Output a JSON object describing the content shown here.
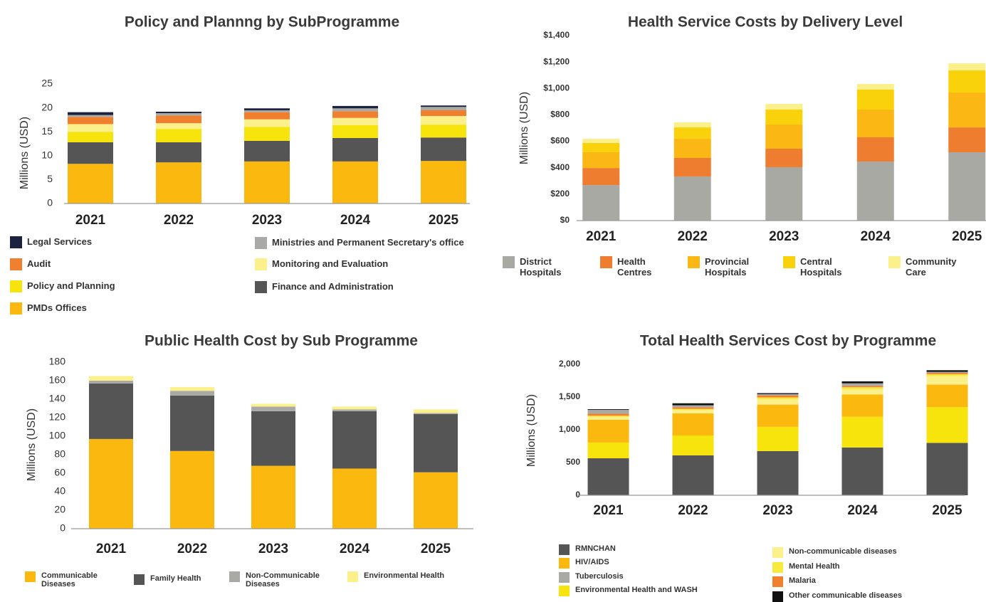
{
  "chart_data": [
    {
      "type": "stacked_bar",
      "title": "Policy and Plannng by SubProgramme",
      "y_label": "Millions (USD)",
      "categories": [
        "2021",
        "2022",
        "2023",
        "2024",
        "2025"
      ],
      "ylim": [
        0,
        25
      ],
      "yticks": [
        0,
        5,
        10,
        15,
        20,
        25
      ],
      "series": [
        {
          "name": "PMDs Offices",
          "color": "#fbb90f",
          "values": [
            8.3,
            8.6,
            8.8,
            8.8,
            8.9
          ]
        },
        {
          "name": "Finance and Administration",
          "color": "#555555",
          "values": [
            4.5,
            4.2,
            4.3,
            4.9,
            4.9
          ]
        },
        {
          "name": "Policy and Planning",
          "color": "#f7e40c",
          "values": [
            2.2,
            2.8,
            2.9,
            2.7,
            2.7
          ]
        },
        {
          "name": "Monitoring and Evaluation",
          "color": "#fbf08a",
          "values": [
            1.6,
            1.2,
            1.6,
            1.5,
            1.8
          ]
        },
        {
          "name": "Audit",
          "color": "#f07f2e",
          "values": [
            1.5,
            1.6,
            1.5,
            1.4,
            1.2
          ]
        },
        {
          "name": "Ministries and Permanent Secretary's office",
          "color": "#a9a9a6",
          "values": [
            0.4,
            0.5,
            0.4,
            0.6,
            0.7
          ]
        },
        {
          "name": "Legal Services",
          "color": "#1b2340",
          "values": [
            0.6,
            0.3,
            0.4,
            0.5,
            0.3
          ]
        }
      ]
    },
    {
      "type": "stacked_bar",
      "title": "Health Service Costs by Delivery Level",
      "y_label": "Millions (USD)",
      "categories": [
        "2021",
        "2022",
        "2023",
        "2024",
        "2025"
      ],
      "ylim": [
        0,
        1400
      ],
      "yticks": [
        {
          "value": 0,
          "label": "$0"
        },
        {
          "value": 200,
          "label": "$200"
        },
        {
          "value": 400,
          "label": "$400"
        },
        {
          "value": 600,
          "label": "$600"
        },
        {
          "value": 800,
          "label": "$800"
        },
        {
          "value": 1000,
          "label": "$1,000"
        },
        {
          "value": 1200,
          "label": "$1,200"
        },
        {
          "value": 1400,
          "label": "$1,400"
        }
      ],
      "series": [
        {
          "name": "District Hospitals",
          "color": "#a9a9a4",
          "values": [
            269,
            334,
            404,
            447,
            517
          ]
        },
        {
          "name": "Health Centres",
          "color": "#ef7d30",
          "values": [
            129,
            140,
            140,
            183,
            188
          ]
        },
        {
          "name": "Provincial Hospitals",
          "color": "#fbb714",
          "values": [
            119,
            145,
            183,
            210,
            264
          ]
        },
        {
          "name": "Central Hospitals",
          "color": "#fad20c",
          "values": [
            70,
            86,
            113,
            151,
            167
          ]
        },
        {
          "name": "Community Care",
          "color": "#fbf08a",
          "values": [
            32,
            38,
            43,
            43,
            54
          ]
        }
      ]
    },
    {
      "type": "stacked_bar",
      "title": "Public Health Cost by Sub Programme",
      "y_label": "Millions (USD)",
      "categories": [
        "2021",
        "2022",
        "2023",
        "2024",
        "2025"
      ],
      "ylim": [
        0,
        180
      ],
      "yticks": [
        0,
        20,
        40,
        60,
        80,
        100,
        120,
        140,
        160,
        180
      ],
      "series": [
        {
          "name": "Communicable Diseases",
          "color": "#fbb90f",
          "values": [
            97,
            84,
            68,
            65,
            61
          ]
        },
        {
          "name": "Family Health",
          "color": "#555555",
          "values": [
            60,
            60,
            59,
            62,
            63
          ]
        },
        {
          "name": "Non-Communicable Diseases",
          "color": "#a9a9a6",
          "values": [
            3,
            5,
            5,
            2,
            1
          ]
        },
        {
          "name": "Environmental Health",
          "color": "#fbf08a",
          "values": [
            5,
            4,
            3,
            3,
            4
          ]
        }
      ]
    },
    {
      "type": "stacked_bar",
      "title": "Total Health Services Cost by Programme",
      "y_label": "Millions (USD)",
      "categories": [
        "2021",
        "2022",
        "2023",
        "2024",
        "2025"
      ],
      "ylim": [
        0,
        2000
      ],
      "yticks": [
        0,
        500,
        {
          "value": 1000,
          "label": "1,000"
        },
        {
          "value": 1500,
          "label": "1,500"
        },
        {
          "value": 2000,
          "label": "2,000"
        }
      ],
      "series": [
        {
          "name": "RMNCHAN",
          "color": "#555555",
          "values": [
            565,
            610,
            675,
            730,
            800
          ]
        },
        {
          "name": "Environmental Health and WASH",
          "color": "#f7e40c",
          "values": [
            240,
            303,
            370,
            470,
            545
          ]
        },
        {
          "name": "HIV/AIDS",
          "color": "#fbb90f",
          "values": [
            350,
            337,
            340,
            340,
            345
          ]
        },
        {
          "name": "Non-communicable diseases",
          "color": "#fbf08a",
          "values": [
            40,
            50,
            80,
            80,
            130
          ]
        },
        {
          "name": "Mental Health",
          "color": "#f8ea3c",
          "values": [
            20,
            20,
            30,
            30,
            30
          ]
        },
        {
          "name": "Malaria",
          "color": "#f07f2e",
          "values": [
            30,
            25,
            30,
            20,
            20
          ]
        },
        {
          "name": "Tuberculosis",
          "color": "#a9a9a6",
          "values": [
            60,
            30,
            20,
            40,
            15
          ]
        },
        {
          "name": "Other communicable diseases",
          "color": "#111111",
          "values": [
            10,
            30,
            15,
            30,
            25
          ]
        }
      ]
    }
  ]
}
